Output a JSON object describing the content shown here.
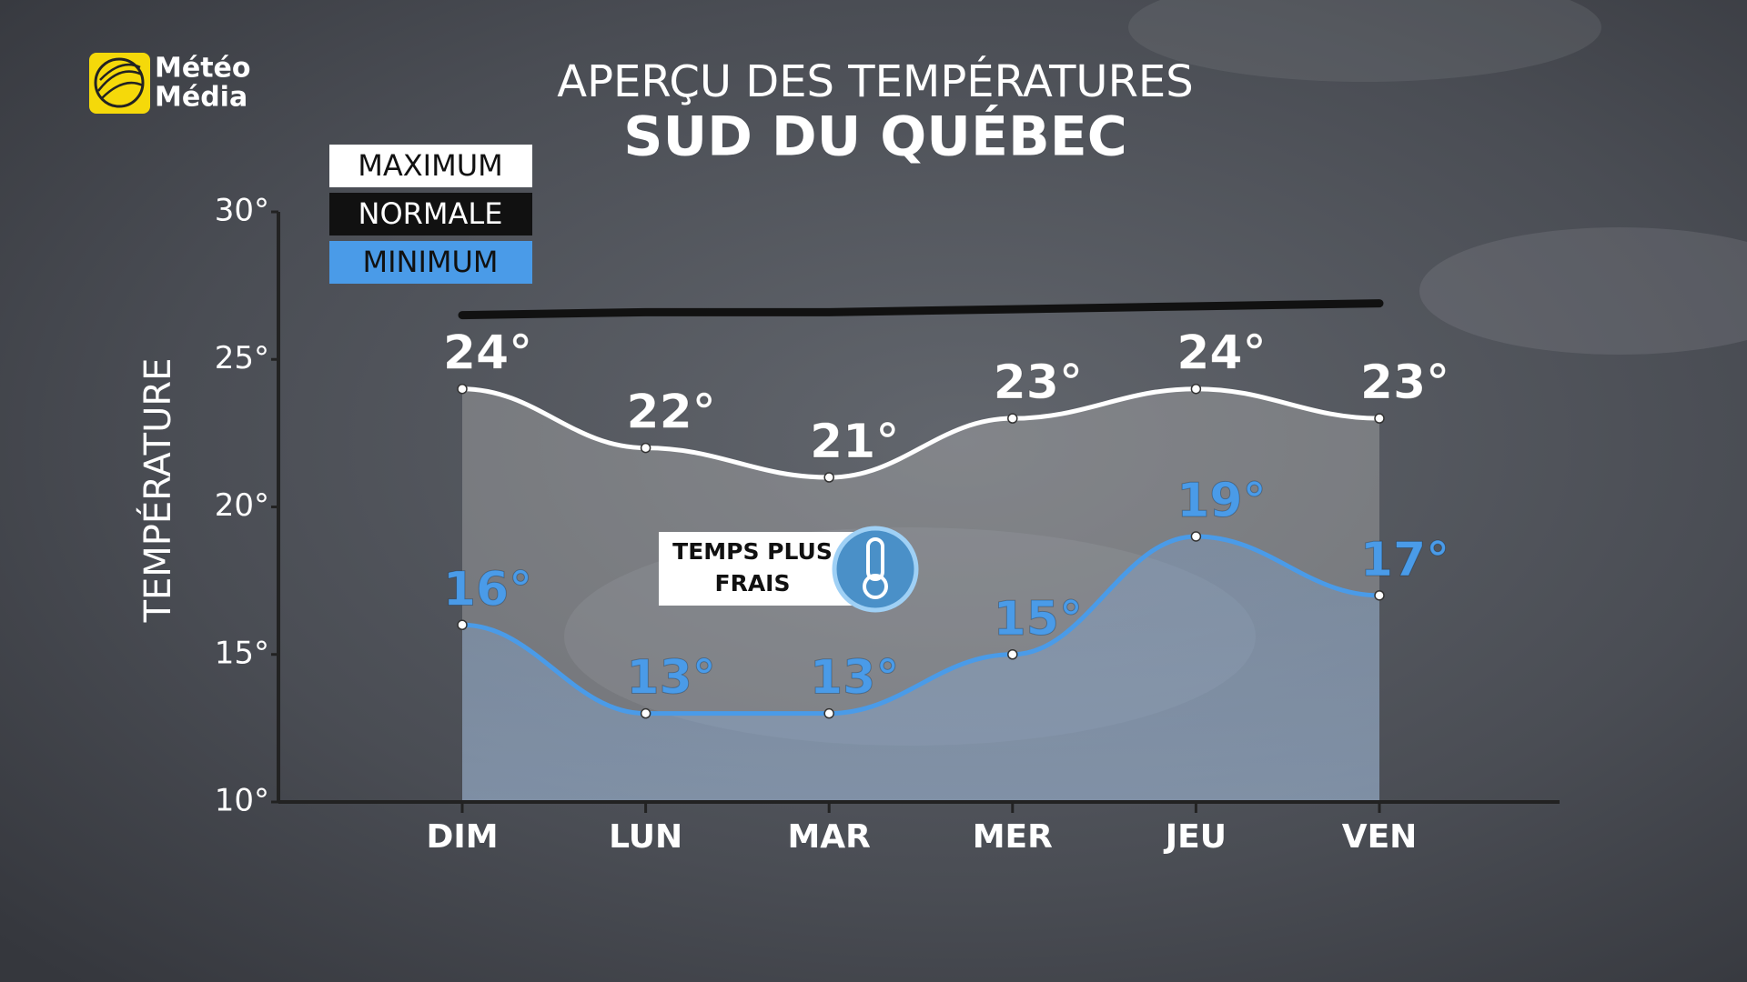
{
  "logo": [
    "Météo",
    "Média"
  ],
  "chart_data": {
    "type": "line",
    "title": "APERÇU DES TEMPÉRATURES",
    "subtitle": "SUD DU QUÉBEC",
    "y_label": "TEMPÉRATURE",
    "categories": [
      "DIM",
      "LUN",
      "MAR",
      "MER",
      "JEU",
      "VEN"
    ],
    "series": [
      {
        "name": "MAXIMUM",
        "color": "#ffffff",
        "values": [
          24,
          22,
          21,
          23,
          24,
          23
        ],
        "value_labels": [
          "24°",
          "22°",
          "21°",
          "23°",
          "24°",
          "23°"
        ]
      },
      {
        "name": "NORMALE",
        "color": "#111111",
        "values": [
          26.5,
          26.6,
          26.6,
          26.7,
          26.8,
          26.9
        ]
      },
      {
        "name": "MINIMUM",
        "color": "#4a9be8",
        "values": [
          16,
          13,
          13,
          15,
          19,
          17
        ],
        "value_labels": [
          "16°",
          "13°",
          "13°",
          "15°",
          "19°",
          "17°"
        ]
      }
    ],
    "ylim": [
      10,
      30
    ],
    "yticks": [
      {
        "value": 10,
        "label": "10°"
      },
      {
        "value": 15,
        "label": "15°"
      },
      {
        "value": 20,
        "label": "20°"
      },
      {
        "value": 25,
        "label": "25°"
      },
      {
        "value": 30,
        "label": "30°"
      }
    ],
    "annotation": [
      "TEMPS PLUS",
      "FRAIS"
    ]
  }
}
